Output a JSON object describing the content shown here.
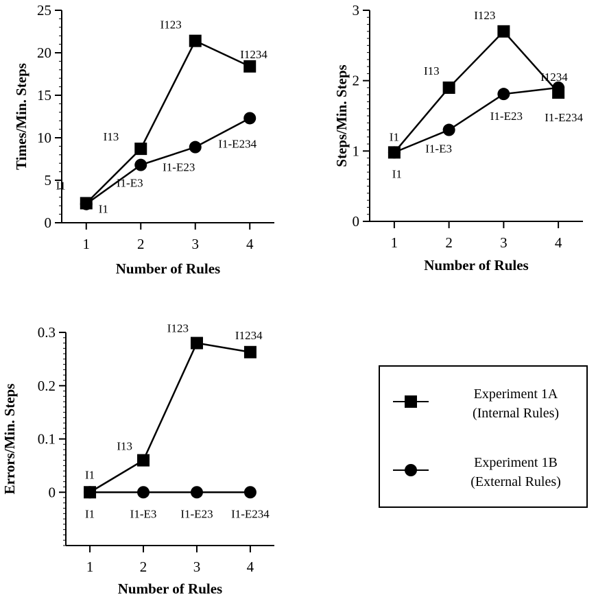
{
  "chart_data": [
    {
      "type": "line",
      "xlabel": "Number of Rules",
      "ylabel": "Times/Min. Steps",
      "x": [
        1,
        2,
        3,
        4
      ],
      "xticks": [
        "1",
        "2",
        "3",
        "4"
      ],
      "xlim": [
        0.55,
        4.45
      ],
      "ylim": [
        0,
        25
      ],
      "yticks": [
        "0",
        "5",
        "10",
        "15",
        "20",
        "25"
      ],
      "yminor_step": 1,
      "series": [
        {
          "name": "Experiment 1A (Internal Rules)",
          "marker": "square",
          "values": [
            2.3,
            8.7,
            21.4,
            18.4
          ],
          "labels": [
            "I1",
            "I13",
            "I123",
            "I1234"
          ]
        },
        {
          "name": "Experiment 1B (External Rules)",
          "marker": "circle",
          "values": [
            2.2,
            6.8,
            8.9,
            12.3
          ],
          "labels": [
            "I1",
            "I1-E3",
            "I1-E23",
            "I1-E234"
          ]
        }
      ]
    },
    {
      "type": "line",
      "xlabel": "Number of Rules",
      "ylabel": "Steps/Min. Steps",
      "x": [
        1,
        2,
        3,
        4
      ],
      "xticks": [
        "1",
        "2",
        "3",
        "4"
      ],
      "xlim": [
        0.55,
        4.45
      ],
      "ylim": [
        0,
        3
      ],
      "yticks": [
        "0",
        "1",
        "2",
        "3"
      ],
      "yminor_step": 0.1,
      "series": [
        {
          "name": "Experiment 1A (Internal Rules)",
          "marker": "square",
          "values": [
            0.98,
            1.9,
            2.7,
            1.83
          ],
          "labels": [
            "I1",
            "I13",
            "I123",
            "I1234"
          ]
        },
        {
          "name": "Experiment 1B (External Rules)",
          "marker": "circle",
          "values": [
            0.98,
            1.3,
            1.81,
            1.9
          ],
          "labels": [
            "I1",
            "I1-E3",
            "I1-E23",
            "I1-E234"
          ]
        }
      ]
    },
    {
      "type": "line",
      "xlabel": "Number of Rules",
      "ylabel": "Errors/Min. Steps",
      "x": [
        1,
        2,
        3,
        4
      ],
      "xticks": [
        "1",
        "2",
        "3",
        "4"
      ],
      "xlim": [
        0.55,
        4.45
      ],
      "ylim": [
        -0.1,
        0.3
      ],
      "yticks": [
        "0",
        "0.1",
        "0.2",
        "0.3"
      ],
      "yminor_step": 0.01,
      "series": [
        {
          "name": "Experiment 1A (Internal Rules)",
          "marker": "square",
          "values": [
            0,
            0.06,
            0.28,
            0.263
          ],
          "labels": [
            "I1",
            "I13",
            "I123",
            "I1234"
          ]
        },
        {
          "name": "Experiment 1B (External Rules)",
          "marker": "circle",
          "values": [
            0,
            0,
            0,
            0
          ],
          "labels": [
            "I1",
            "I1-E3",
            "I1-E23",
            "I1-E234"
          ]
        }
      ]
    }
  ],
  "legend": {
    "placement": "bottom-right",
    "items": [
      {
        "marker": "square",
        "line1": "Experiment 1A",
        "line2": "(Internal Rules)"
      },
      {
        "marker": "circle",
        "line1": "Experiment 1B",
        "line2": "(External Rules)"
      }
    ]
  }
}
